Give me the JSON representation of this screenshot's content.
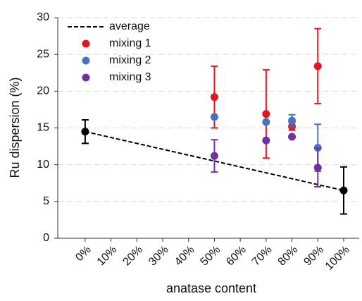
{
  "chart_data": {
    "type": "scatter",
    "y_label": "Ru dispersion (%)",
    "x_label": "anatase content",
    "xlim": [
      -10.6,
      106
    ],
    "ylim": [
      0,
      30
    ],
    "xticks": [
      {
        "value": 0,
        "label": "0%"
      },
      {
        "value": 10,
        "label": "10%"
      },
      {
        "value": 20,
        "label": "20%"
      },
      {
        "value": 30,
        "label": "30%"
      },
      {
        "value": 40,
        "label": "40%"
      },
      {
        "value": 50,
        "label": "50%"
      },
      {
        "value": 60,
        "label": "60%"
      },
      {
        "value": 70,
        "label": "70%"
      },
      {
        "value": 80,
        "label": "80%"
      },
      {
        "value": 90,
        "label": "90%"
      },
      {
        "value": 100,
        "label": "100%"
      }
    ],
    "yticks": [
      0,
      5,
      10,
      15,
      20,
      25,
      30
    ],
    "grid": true,
    "legend": "top-left",
    "series": [
      {
        "name": "average",
        "color": "#000000",
        "line": "dashed",
        "x": [
          0,
          100
        ],
        "values": [
          14.5,
          6.5
        ],
        "errors": [
          1.6,
          3.2
        ]
      },
      {
        "name": "mixing 1",
        "color": "#e8141b",
        "x": [
          50,
          70,
          80,
          90
        ],
        "values": [
          19.2,
          16.9,
          15.2,
          23.4
        ],
        "errors": [
          4.2,
          6.0,
          0.5,
          5.1
        ]
      },
      {
        "name": "mixing 2",
        "color": "#4472c4",
        "x": [
          50,
          70,
          80,
          90
        ],
        "values": [
          16.5,
          15.8,
          16.0,
          12.3
        ],
        "errors": [
          null,
          null,
          0.8,
          3.2
        ]
      },
      {
        "name": "mixing 3",
        "color": "#7030a0",
        "x": [
          50,
          70,
          80,
          90
        ],
        "values": [
          11.2,
          13.3,
          13.8,
          9.6
        ],
        "errors": [
          2.2,
          null,
          null,
          2.6
        ]
      }
    ]
  }
}
